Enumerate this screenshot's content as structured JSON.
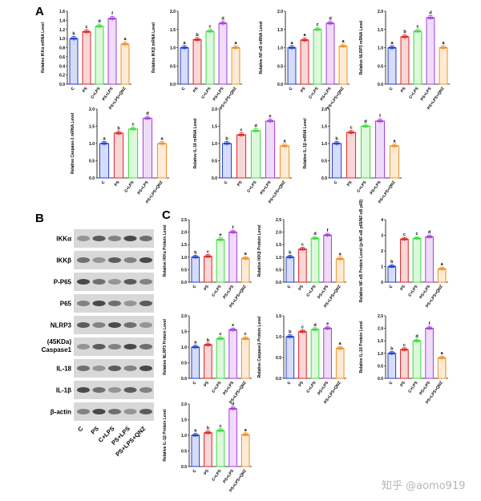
{
  "panel_labels": {
    "a": "A",
    "b": "B",
    "c": "C"
  },
  "watermark": "知乎 @aomo919",
  "categories": [
    "C",
    "PS",
    "C+LPS",
    "PS+LPS",
    "PS+LPS+QNZ"
  ],
  "colors": [
    "#1f3fd6",
    "#e02424",
    "#3ddc3d",
    "#a83ce0",
    "#f29022"
  ],
  "blot": {
    "labels": [
      "IKKα",
      "IKKβ",
      "P-P65",
      "P65",
      "NLRP3",
      "(45KDa)",
      "Caspase1",
      "IL-18",
      "IL-1β",
      "β-actin"
    ],
    "lanes": [
      "C",
      "PS",
      "C+LPS",
      "PS+LPS",
      "PS+LPS+QNZ"
    ]
  },
  "chart_data": [
    {
      "panel": "A",
      "type": "bar",
      "ylabel": "Relative IKKα mRNA Level",
      "ylim": [
        0,
        1.6
      ],
      "ticks": [
        "0.0",
        "0.2",
        "0.4",
        "0.6",
        "0.8",
        "1.0",
        "1.2",
        "1.4",
        "1.6"
      ],
      "values": [
        1.0,
        1.15,
        1.27,
        1.44,
        0.88
      ],
      "letters": [
        "b",
        "c",
        "d",
        "f",
        "a"
      ]
    },
    {
      "panel": "A",
      "type": "bar",
      "ylabel": "Relative IKKβ mRNA Level",
      "ylim": [
        0,
        2.0
      ],
      "ticks": [
        "0.0",
        "0.5",
        "1.0",
        "1.5",
        "2.0"
      ],
      "values": [
        1.0,
        1.22,
        1.45,
        1.67,
        1.0
      ],
      "letters": [
        "a",
        "b",
        "c",
        "d",
        "a"
      ]
    },
    {
      "panel": "A",
      "type": "bar",
      "ylabel": "Relative NF-κB mRNA Level",
      "ylim": [
        0,
        2.0
      ],
      "ticks": [
        "0.0",
        "0.5",
        "1.0",
        "1.5",
        "2.0"
      ],
      "values": [
        1.0,
        1.21,
        1.5,
        1.67,
        1.04
      ],
      "letters": [
        "a",
        "a",
        "c",
        "d",
        "a"
      ]
    },
    {
      "panel": "A",
      "type": "bar",
      "ylabel": "Relative NLRP3 mRNA Level",
      "ylim": [
        0,
        2.0
      ],
      "ticks": [
        "0.0",
        "0.5",
        "1.0",
        "1.5",
        "2.0"
      ],
      "values": [
        1.0,
        1.3,
        1.45,
        1.82,
        1.0
      ],
      "letters": [
        "a",
        "b",
        "c",
        "d",
        "a"
      ]
    },
    {
      "panel": "A",
      "type": "bar",
      "ylabel": "Relative Caspase-1 mRNA Level",
      "ylim": [
        0,
        2.0
      ],
      "ticks": [
        "0.0",
        "0.5",
        "1.0",
        "1.5",
        "2.0"
      ],
      "values": [
        1.0,
        1.3,
        1.42,
        1.73,
        1.0
      ],
      "letters": [
        "a",
        "b",
        "c",
        "d",
        "a"
      ]
    },
    {
      "panel": "A",
      "type": "bar",
      "ylabel": "Relative IL-18 mRNA Level",
      "ylim": [
        0,
        2.0
      ],
      "ticks": [
        "0.0",
        "0.5",
        "1.0",
        "1.5",
        "2.0"
      ],
      "values": [
        1.0,
        1.25,
        1.37,
        1.65,
        0.93
      ],
      "letters": [
        "b",
        "c",
        "d",
        "e",
        "a"
      ]
    },
    {
      "panel": "A",
      "type": "bar",
      "ylabel": "Relative IL-1β mRNA Level",
      "ylim": [
        0,
        2.0
      ],
      "ticks": [
        "0.0",
        "0.5",
        "1.0",
        "1.5",
        "2.0"
      ],
      "values": [
        1.0,
        1.32,
        1.5,
        1.65,
        0.93
      ],
      "letters": [
        "b",
        "c",
        "d",
        "f",
        "a"
      ]
    },
    {
      "panel": "C",
      "type": "bar",
      "ylabel": "Relative IKKα Protein Level",
      "ylim": [
        0,
        2.5
      ],
      "ticks": [
        "0.0",
        "0.5",
        "1.0",
        "1.5",
        "2.0",
        "2.5"
      ],
      "values": [
        1.0,
        1.03,
        1.7,
        2.0,
        0.95
      ],
      "letters": [
        "b",
        "c",
        "e",
        "f",
        "a"
      ]
    },
    {
      "panel": "C",
      "type": "bar",
      "ylabel": "Relative IKKβ Protein Level",
      "ylim": [
        0,
        2.5
      ],
      "ticks": [
        "0.0",
        "0.5",
        "1.0",
        "1.5",
        "2.0",
        "2.5"
      ],
      "values": [
        1.0,
        1.32,
        1.75,
        1.88,
        0.93
      ],
      "letters": [
        "b",
        "c",
        "d",
        "f",
        "a"
      ]
    },
    {
      "panel": "C",
      "type": "bar",
      "ylabel": "Relative NF-κB Protein Level (p-NF-κB p65/NF-κB p65)",
      "ylim": [
        0,
        4
      ],
      "ticks": [
        "0",
        "1",
        "2",
        "3",
        "4"
      ],
      "values": [
        1.0,
        2.75,
        2.8,
        2.9,
        0.85
      ],
      "letters": [
        "b",
        "c",
        "c",
        "d",
        "a"
      ]
    },
    {
      "panel": "C",
      "type": "bar",
      "ylabel": "Relative NLRP3 Protein Level",
      "ylim": [
        0,
        2.0
      ],
      "ticks": [
        "0.0",
        "0.5",
        "1.0",
        "1.5",
        "2.0"
      ],
      "values": [
        1.0,
        1.07,
        1.27,
        1.55,
        1.27
      ],
      "letters": [
        "a",
        "b",
        "c",
        "e",
        "c"
      ]
    },
    {
      "panel": "C",
      "type": "bar",
      "ylabel": "Relative Caspase1 Protein Level",
      "ylim": [
        0,
        1.5
      ],
      "ticks": [
        "0.0",
        "0.5",
        "1.0",
        "1.5"
      ],
      "values": [
        1.0,
        1.12,
        1.17,
        1.2,
        0.72
      ],
      "letters": [
        "b",
        "c",
        "d",
        "e",
        "a"
      ]
    },
    {
      "panel": "C",
      "type": "bar",
      "ylabel": "Relative IL-18 Protein Level",
      "ylim": [
        0,
        2.5
      ],
      "ticks": [
        "0.0",
        "0.5",
        "1.0",
        "1.5",
        "2.0",
        "2.5"
      ],
      "values": [
        1.0,
        1.15,
        1.5,
        2.0,
        0.82
      ],
      "letters": [
        "b",
        "c",
        "d",
        "f",
        "a"
      ]
    },
    {
      "panel": "C",
      "type": "bar",
      "ylabel": "Relative IL-1β Protein Level",
      "ylim": [
        0,
        2.0
      ],
      "ticks": [
        "0.0",
        "0.5",
        "1.0",
        "1.5",
        "2.0"
      ],
      "values": [
        1.0,
        1.08,
        1.15,
        1.85,
        1.02
      ],
      "letters": [
        "a",
        "b",
        "c",
        "d",
        "a"
      ]
    }
  ]
}
